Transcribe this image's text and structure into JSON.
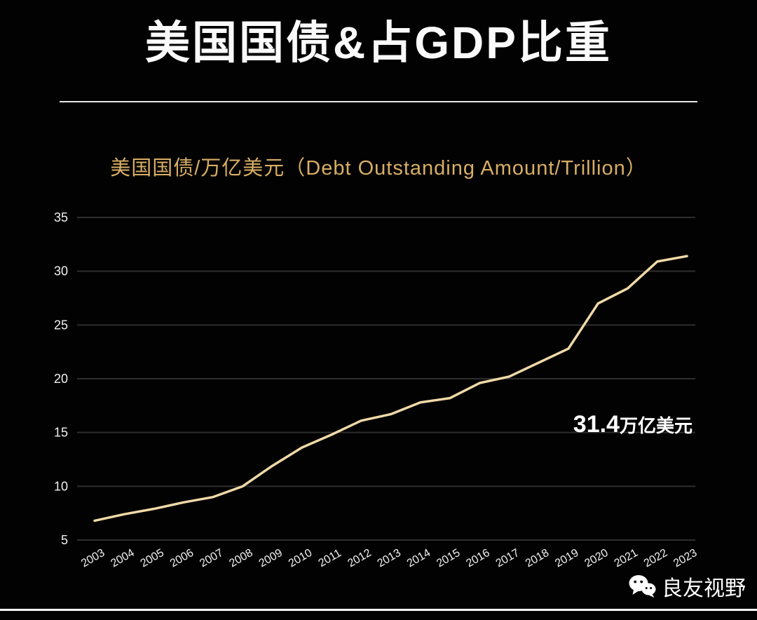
{
  "page": {
    "title": "美国国债&占GDP比重",
    "watermark": {
      "label": "良友视野"
    }
  },
  "chart_data": {
    "type": "line",
    "title": "美国国债/万亿美元（Debt Outstanding Amount/Trillion）",
    "categories": [
      "2003",
      "2004",
      "2005",
      "2006",
      "2007",
      "2008",
      "2009",
      "2010",
      "2011",
      "2012",
      "2013",
      "2014",
      "2015",
      "2016",
      "2017",
      "2018",
      "2019",
      "2020",
      "2021",
      "2022",
      "2023"
    ],
    "values": [
      6.8,
      7.4,
      7.9,
      8.5,
      9.0,
      10.0,
      11.9,
      13.6,
      14.8,
      16.1,
      16.7,
      17.8,
      18.2,
      19.6,
      20.2,
      21.5,
      22.8,
      27.0,
      28.4,
      30.9,
      31.4
    ],
    "xlabel": "",
    "ylabel": "",
    "ylim": [
      5,
      35
    ],
    "yticks": [
      35,
      30,
      25,
      20,
      15,
      10,
      5
    ],
    "grid": true,
    "legend_position": "none",
    "line_color": "#efd9a7",
    "grid_color": "#2e2e2e",
    "annotation": {
      "value": "31.4",
      "unit": "万亿美元"
    }
  }
}
